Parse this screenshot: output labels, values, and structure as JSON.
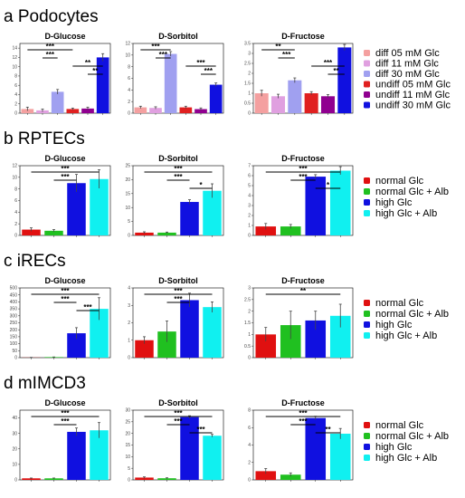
{
  "panels": [
    {
      "letter": "a",
      "title": "Podocytes",
      "legend": [
        {
          "label": "diff 05 mM Glc",
          "color": "#f4a0a0"
        },
        {
          "label": "diff 11 mM Glc",
          "color": "#e0a0e0"
        },
        {
          "label": "diff 30 mM Glc",
          "color": "#a0a0f0"
        },
        {
          "label": "undiff 05 mM Glc",
          "color": "#e02020"
        },
        {
          "label": "undiff 11 mM Glc",
          "color": "#900090"
        },
        {
          "label": "undiff 30 mM Glc",
          "color": "#1010e0"
        }
      ]
    },
    {
      "letter": "b",
      "title": "RPTECs",
      "legend": [
        {
          "label": "normal Glc",
          "color": "#e01010"
        },
        {
          "label": "normal Glc + Alb",
          "color": "#20c020"
        },
        {
          "label": "high Glc",
          "color": "#1010e0"
        },
        {
          "label": "high Glc + Alb",
          "color": "#10f0f0"
        }
      ]
    },
    {
      "letter": "c",
      "title": "iRECs",
      "legend": [
        {
          "label": "normal Glc",
          "color": "#e01010"
        },
        {
          "label": "normal Glc + Alb",
          "color": "#20c020"
        },
        {
          "label": "high Glc",
          "color": "#1010e0"
        },
        {
          "label": "high Glc + Alb",
          "color": "#10f0f0"
        }
      ]
    },
    {
      "letter": "d",
      "title": "mIMCD3",
      "legend": [
        {
          "label": "normal Glc",
          "color": "#e01010"
        },
        {
          "label": "normal Glc + Alb",
          "color": "#20c020"
        },
        {
          "label": "high Glc",
          "color": "#1010e0"
        },
        {
          "label": "high Glc + Alb",
          "color": "#10f0f0"
        }
      ]
    }
  ],
  "chart_data": [
    {
      "panel": "a",
      "type": "bar",
      "title": "D-Glucose",
      "xlabel": "",
      "ylabel": "",
      "ylim": [
        0,
        15
      ],
      "yticks": [
        0,
        2,
        4,
        6,
        8,
        10,
        12,
        14
      ],
      "series": [
        {
          "values": [
            0.9,
            0.6,
            4.6,
            0.9,
            1.0,
            12.0
          ],
          "errors": [
            0.4,
            0.3,
            0.5,
            0.2,
            0.3,
            0.8
          ]
        }
      ],
      "significance": [
        {
          "from": 0,
          "to": 3,
          "label": "***"
        },
        {
          "from": 1,
          "to": 2,
          "label": "***"
        },
        {
          "from": 3,
          "to": 5,
          "label": "**"
        },
        {
          "from": 4,
          "to": 5,
          "label": "**"
        }
      ]
    },
    {
      "panel": "a",
      "type": "bar",
      "title": "D-Sorbitol",
      "xlabel": "",
      "ylabel": "",
      "ylim": [
        0,
        12
      ],
      "yticks": [
        0,
        2,
        4,
        6,
        8,
        10,
        12
      ],
      "series": [
        {
          "values": [
            1.0,
            0.9,
            10.2,
            1.0,
            0.7,
            4.9
          ],
          "errors": [
            0.2,
            0.2,
            0.4,
            0.2,
            0.2,
            0.3
          ]
        }
      ],
      "significance": [
        {
          "from": 0,
          "to": 2,
          "label": "***"
        },
        {
          "from": 1,
          "to": 2,
          "label": "***"
        },
        {
          "from": 3,
          "to": 5,
          "label": "***"
        },
        {
          "from": 4,
          "to": 5,
          "label": "***"
        }
      ]
    },
    {
      "panel": "a",
      "type": "bar",
      "title": "D-Fructose",
      "xlabel": "",
      "ylabel": "",
      "ylim": [
        0,
        3.5
      ],
      "yticks": [
        0,
        0.5,
        1.0,
        1.5,
        2.0,
        2.5,
        3.0,
        3.5
      ],
      "series": [
        {
          "values": [
            1.0,
            0.85,
            1.65,
            1.0,
            0.85,
            3.3
          ],
          "errors": [
            0.15,
            0.1,
            0.12,
            0.08,
            0.08,
            0.15
          ]
        }
      ],
      "significance": [
        {
          "from": 0,
          "to": 2,
          "label": "**"
        },
        {
          "from": 1,
          "to": 2,
          "label": "***"
        },
        {
          "from": 3,
          "to": 5,
          "label": "***"
        },
        {
          "from": 4,
          "to": 5,
          "label": "**"
        }
      ]
    },
    {
      "panel": "b",
      "type": "bar",
      "title": "D-Glucose",
      "xlabel": "",
      "ylabel": "",
      "ylim": [
        0,
        12
      ],
      "yticks": [
        0,
        2,
        4,
        6,
        8,
        10,
        12
      ],
      "series": [
        {
          "values": [
            1.0,
            0.8,
            9.0,
            9.7
          ],
          "errors": [
            0.3,
            0.2,
            1.5,
            1.6
          ]
        }
      ],
      "significance": [
        {
          "from": 0,
          "to": 3,
          "label": "***"
        },
        {
          "from": 1,
          "to": 2,
          "label": "***"
        }
      ]
    },
    {
      "panel": "b",
      "type": "bar",
      "title": "D-Sorbitol",
      "xlabel": "",
      "ylabel": "",
      "ylim": [
        0,
        25
      ],
      "yticks": [
        0,
        5,
        10,
        15,
        20,
        25
      ],
      "series": [
        {
          "values": [
            1.0,
            1.0,
            12.0,
            16.0
          ],
          "errors": [
            0.3,
            0.2,
            0.8,
            2.5
          ]
        }
      ],
      "significance": [
        {
          "from": 0,
          "to": 3,
          "label": "***"
        },
        {
          "from": 1,
          "to": 2,
          "label": "***"
        },
        {
          "from": 2,
          "to": 3,
          "label": "*"
        }
      ]
    },
    {
      "panel": "b",
      "type": "bar",
      "title": "D-Fructose",
      "xlabel": "",
      "ylabel": "",
      "ylim": [
        0,
        7
      ],
      "yticks": [
        0,
        1,
        2,
        3,
        4,
        5,
        6,
        7
      ],
      "series": [
        {
          "values": [
            0.9,
            0.9,
            5.9,
            6.5
          ],
          "errors": [
            0.3,
            0.2,
            0.2,
            0.4
          ]
        }
      ],
      "significance": [
        {
          "from": 0,
          "to": 3,
          "label": "***"
        },
        {
          "from": 1,
          "to": 2,
          "label": "***"
        },
        {
          "from": 2,
          "to": 3,
          "label": "*"
        }
      ]
    },
    {
      "panel": "c",
      "type": "bar",
      "title": "D-Glucose",
      "xlabel": "",
      "ylabel": "",
      "ylim": [
        0,
        500
      ],
      "yticks": [
        0,
        50,
        100,
        150,
        200,
        250,
        300,
        350,
        400,
        450,
        500
      ],
      "series": [
        {
          "values": [
            1,
            4,
            175,
            350
          ],
          "errors": [
            1,
            1,
            40,
            80
          ]
        }
      ],
      "significance": [
        {
          "from": 0,
          "to": 3,
          "label": "***"
        },
        {
          "from": 1,
          "to": 2,
          "label": "***"
        },
        {
          "from": 2,
          "to": 3,
          "label": "***"
        }
      ]
    },
    {
      "panel": "c",
      "type": "bar",
      "title": "D-Sorbitol",
      "xlabel": "",
      "ylabel": "",
      "ylim": [
        0,
        4
      ],
      "yticks": [
        0,
        1,
        2,
        3,
        4
      ],
      "series": [
        {
          "values": [
            1.0,
            1.5,
            3.3,
            2.9
          ],
          "errors": [
            0.2,
            0.6,
            0.4,
            0.3
          ]
        }
      ],
      "significance": [
        {
          "from": 0,
          "to": 3,
          "label": "***"
        },
        {
          "from": 1,
          "to": 2,
          "label": "***"
        }
      ]
    },
    {
      "panel": "c",
      "type": "bar",
      "title": "D-Fructose",
      "xlabel": "",
      "ylabel": "",
      "ylim": [
        0,
        3
      ],
      "yticks": [
        0,
        0.5,
        1.0,
        1.5,
        2.0,
        2.5,
        3.0
      ],
      "series": [
        {
          "values": [
            1.0,
            1.4,
            1.6,
            1.8
          ],
          "errors": [
            0.3,
            0.6,
            0.4,
            0.5
          ]
        }
      ],
      "significance": [
        {
          "from": 0,
          "to": 3,
          "label": "**"
        }
      ]
    },
    {
      "panel": "d",
      "type": "bar",
      "title": "D-Glucose",
      "xlabel": "",
      "ylabel": "",
      "ylim": [
        0,
        45
      ],
      "yticks": [
        0,
        10,
        20,
        30,
        40
      ],
      "series": [
        {
          "values": [
            1.0,
            1.0,
            31.0,
            32.0
          ],
          "errors": [
            0.2,
            0.2,
            2.5,
            5.0
          ]
        }
      ],
      "significance": [
        {
          "from": 0,
          "to": 3,
          "label": "***"
        },
        {
          "from": 1,
          "to": 2,
          "label": "***"
        }
      ]
    },
    {
      "panel": "d",
      "type": "bar",
      "title": "D-Sorbitol",
      "xlabel": "",
      "ylabel": "",
      "ylim": [
        0,
        30
      ],
      "yticks": [
        0,
        5,
        10,
        15,
        20,
        25,
        30
      ],
      "series": [
        {
          "values": [
            1.0,
            0.7,
            27.0,
            19.0
          ],
          "errors": [
            0.3,
            0.2,
            0.6,
            0.6
          ]
        }
      ],
      "significance": [
        {
          "from": 0,
          "to": 3,
          "label": "***"
        },
        {
          "from": 1,
          "to": 2,
          "label": "***"
        },
        {
          "from": 2,
          "to": 3,
          "label": "***"
        }
      ]
    },
    {
      "panel": "d",
      "type": "bar",
      "title": "D-Fructose",
      "xlabel": "",
      "ylabel": "",
      "ylim": [
        0,
        8
      ],
      "yticks": [
        0,
        2,
        4,
        6,
        8
      ],
      "series": [
        {
          "values": [
            1.0,
            0.6,
            7.1,
            5.3
          ],
          "errors": [
            0.3,
            0.2,
            0.2,
            0.6
          ]
        }
      ],
      "significance": [
        {
          "from": 0,
          "to": 3,
          "label": "***"
        },
        {
          "from": 1,
          "to": 2,
          "label": "***"
        },
        {
          "from": 2,
          "to": 3,
          "label": "**"
        }
      ]
    }
  ]
}
